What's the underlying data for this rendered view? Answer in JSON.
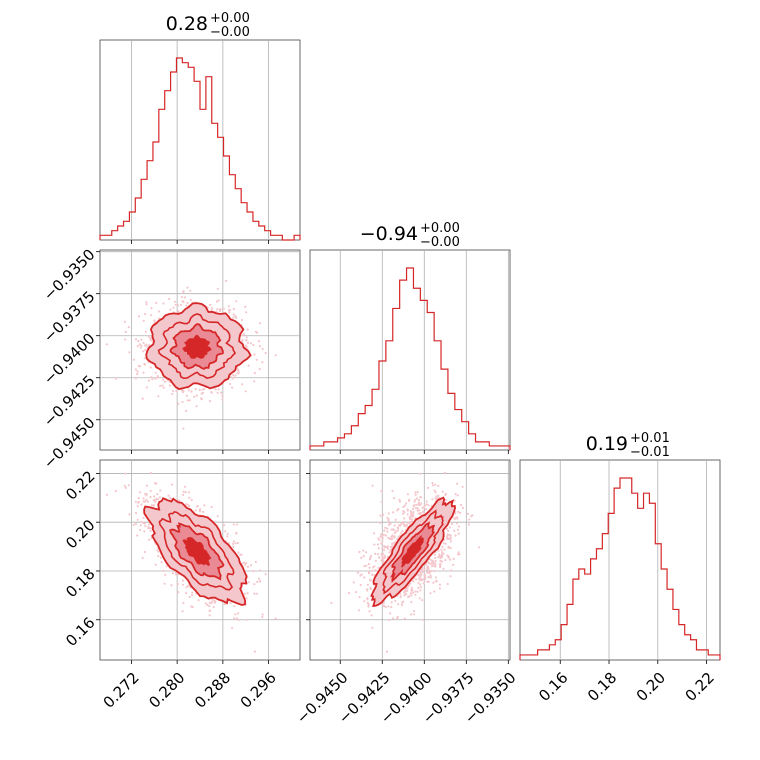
{
  "chart_data": {
    "type": "scatter",
    "subtype": "corner-plot",
    "color": "#d62728",
    "light_color": "#f4c7cc",
    "mid_color": "#e98a95",
    "grid": true,
    "parameters": [
      {
        "title": {
          "value": "0.28",
          "plus": "+0.00",
          "minus": "−0.00"
        },
        "range": [
          0.2665,
          0.3015
        ],
        "ticks": [
          0.272,
          0.28,
          0.288,
          0.296
        ],
        "tick_labels": [
          "0.272",
          "0.280",
          "0.288",
          "0.296"
        ],
        "hist_counts": [
          1,
          1,
          2,
          3,
          4,
          6,
          9,
          13,
          17,
          21,
          28,
          32,
          36,
          39,
          38,
          37,
          34,
          28,
          35,
          25,
          22,
          18,
          14,
          11,
          8,
          6,
          4,
          3,
          2,
          1,
          1,
          0,
          0,
          1
        ],
        "mean": 0.2835,
        "std": 0.0042
      },
      {
        "title": {
          "value": "−0.94",
          "plus": "+0.00",
          "minus": "−0.00"
        },
        "range": [
          -0.9468,
          -0.9349
        ],
        "ticks": [
          -0.945,
          -0.9425,
          -0.94,
          -0.9375,
          -0.935
        ],
        "tick_labels": [
          "−0.9450",
          "−0.9425",
          "−0.9400",
          "−0.9375",
          "−0.9350"
        ],
        "y_tick_labels": [
          "−0.9350",
          "−0.9375",
          "−0.9400",
          "−0.9425",
          "−0.9450"
        ],
        "hist_counts": [
          1,
          1,
          2,
          2,
          3,
          4,
          6,
          9,
          11,
          15,
          22,
          27,
          35,
          42,
          45,
          40,
          37,
          34,
          27,
          20,
          14,
          10,
          7,
          4,
          2,
          2,
          1,
          1,
          1
        ],
        "mean": -0.9407,
        "std": 0.0012
      },
      {
        "title": {
          "value": "0.19",
          "plus": "+0.01",
          "minus": "−0.01"
        },
        "range": [
          0.1435,
          0.2255
        ],
        "ticks": [
          0.16,
          0.18,
          0.2,
          0.22
        ],
        "tick_labels": [
          "0.16",
          "0.18",
          "0.20",
          "0.22"
        ],
        "hist_counts": [
          1,
          1,
          1,
          2,
          2,
          3,
          4,
          7,
          11,
          16,
          18,
          17,
          20,
          22,
          25,
          29,
          34,
          36,
          36,
          33,
          30,
          33,
          31,
          23,
          18,
          14,
          10,
          7,
          5,
          4,
          2,
          2,
          1,
          1
        ],
        "mean": 0.188,
        "std": 0.0105
      }
    ],
    "correlations": {
      "p0_p1": 0.0,
      "p0_p2": -0.65,
      "p1_p2": 0.85
    },
    "samples": 1500
  }
}
